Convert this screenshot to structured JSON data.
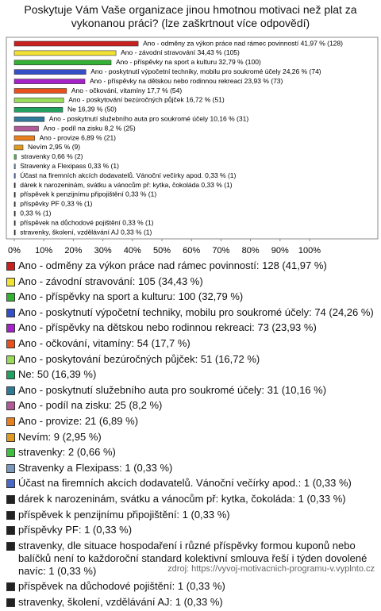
{
  "chart_data": {
    "type": "bar",
    "orientation": "horizontal",
    "title": "Poskytuje Vám Vaše organizace jinou hmotnou motivaci než plat za vykonanou práci? (lze zaškrtnout více odpovědí)",
    "values": [
      41.97,
      34.43,
      32.79,
      24.26,
      23.93,
      17.7,
      16.72,
      16.39,
      10.16,
      8.2,
      6.89,
      2.95,
      0.66,
      0.33,
      0.33,
      0.33,
      0.33,
      0.33,
      0.33,
      0.33,
      0.33
    ],
    "value_labels": [
      "Ano - odměny za výkon práce nad rámec povinností 41,97 % (128)",
      "Ano - závodní stravování 34,43 % (105)",
      "Ano - příspěvky na sport a kulturu 32,79 % (100)",
      "Ano - poskytnutí výpočetní techniky, mobilu pro soukromé účely 24,26 % (74)",
      "Ano - příspěvky na dětskou nebo rodinnou rekreaci 23,93 % (73)",
      "Ano - očkování, vitamíny 17,7 % (54)",
      "Ano - poskytování bezúročných půjček 16,72 % (51)",
      "Ne 16,39 % (50)",
      "Ano - poskytnutí služebního auta pro soukromé účely 10,16 % (31)",
      "Ano - podíl na zisku 8,2 % (25)",
      "Ano - provize 6,89 % (21)",
      "Nevím 2,95 % (9)",
      "stravenky 0,66 % (2)",
      "Stravenky a Flexipass 0,33 % (1)",
      "Účast na firemních akcích dodavatelů. Vánoční večírky apod. 0,33 % (1)",
      "dárek k narozeninám, svátku a vánocům př: kytka, čokoláda 0,33 % (1)",
      "příspěvek k penzijnímu připojištění 0,33 % (1)",
      "příspěvky PF 0,33 % (1)",
      "0,33 % (1)",
      "příspěvek na důchodové pojištění 0,33 % (1)",
      "stravenky, školení, vzdělávání AJ 0,33 % (1)"
    ],
    "legend_labels": [
      "Ano - odměny za výkon práce nad rámec povinností: 128 (41,97 %)",
      "Ano - závodní stravování: 105 (34,43 %)",
      "Ano - příspěvky na sport a kulturu: 100 (32,79 %)",
      "Ano - poskytnutí výpočetní techniky, mobilu pro soukromé účely: 74 (24,26 %)",
      "Ano - příspěvky na dětskou nebo rodinnou rekreaci: 73 (23,93 %)",
      "Ano - očkování, vitamíny: 54 (17,7 %)",
      "Ano - poskytování bezúročných půjček: 51 (16,72 %)",
      "Ne: 50 (16,39 %)",
      "Ano - poskytnutí služebního auta pro soukromé účely: 31 (10,16 %)",
      "Ano - podíl na zisku: 25 (8,2 %)",
      "Ano - provize: 21 (6,89 %)",
      "Nevím: 9 (2,95 %)",
      "stravenky: 2 (0,66 %)",
      "Stravenky a Flexipass: 1 (0,33 %)",
      "Účast na firemních akcích dodavatelů. Vánoční večírky apod.: 1 (0,33 %)",
      "dárek k narozeninám, svátku a vánocům př: kytka, čokoláda: 1 (0,33 %)",
      "příspěvek k penzijnímu připojištění: 1 (0,33 %)",
      "příspěvky PF: 1 (0,33 %)",
      "stravenky, dle situace hospodaření i různé příspěvky formou kuponů nebo balíčků není to každoroční standard kolektivní smlouva řeší i týden dovolené navíc: 1 (0,33 %)",
      "příspěvek na důchodové pojištění: 1 (0,33 %)",
      "stravenky, školení, vzdělávání AJ: 1 (0,33 %)"
    ],
    "colors": [
      "#c8201e",
      "#f2e232",
      "#34b034",
      "#3350c8",
      "#a522c8",
      "#e8501e",
      "#9ada5a",
      "#22a060",
      "#2f7a98",
      "#b05a9a",
      "#e8801e",
      "#e09a20",
      "#40c040",
      "#7a98bc",
      "#4a68c8",
      "#222222",
      "#222222",
      "#222222",
      "#222222",
      "#222222",
      "#222222"
    ],
    "xlim": [
      0,
      100
    ],
    "xticks": [
      {
        "value": 0,
        "label": "0%"
      },
      {
        "value": 10,
        "label": "10%"
      },
      {
        "value": 20,
        "label": "20%"
      },
      {
        "value": 30,
        "label": "30%"
      },
      {
        "value": 40,
        "label": "40%"
      },
      {
        "value": 50,
        "label": "50%"
      },
      {
        "value": 60,
        "label": "60%"
      },
      {
        "value": 70,
        "label": "70%"
      },
      {
        "value": 80,
        "label": "80%"
      },
      {
        "value": 90,
        "label": "90%"
      },
      {
        "value": 100,
        "label": "100%"
      }
    ],
    "source": "zdroj: https://vyvoj-motivacnich-programu-v.vyplnto.cz"
  }
}
